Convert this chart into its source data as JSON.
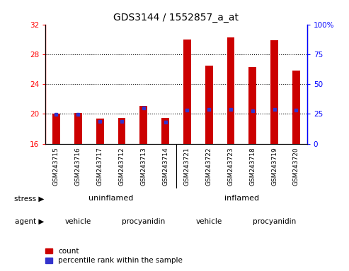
{
  "title": "GDS3144 / 1552857_a_at",
  "samples": [
    "GSM243715",
    "GSM243716",
    "GSM243717",
    "GSM243712",
    "GSM243713",
    "GSM243714",
    "GSM243721",
    "GSM243722",
    "GSM243723",
    "GSM243718",
    "GSM243719",
    "GSM243720"
  ],
  "count_values": [
    20.0,
    20.1,
    19.4,
    19.45,
    21.1,
    19.5,
    30.0,
    26.5,
    30.25,
    26.3,
    29.85,
    25.8
  ],
  "percentile_values": [
    24.5,
    24.5,
    18.5,
    18.5,
    30.0,
    18.0,
    28.0,
    28.8,
    28.8,
    27.5,
    28.8,
    28.0
  ],
  "ymin": 16,
  "ymax": 32,
  "yticks_left": [
    16,
    20,
    24,
    28,
    32
  ],
  "bar_color": "#cc0000",
  "blue_color": "#3333cc",
  "bar_width": 0.35,
  "stress_uninflamed_color": "#aaddaa",
  "stress_inflamed_color": "#44cc44",
  "agent_vehicle_color": "#dd99dd",
  "agent_procyanidin_color": "#cc55cc",
  "stress_label": "stress",
  "agent_label": "agent",
  "legend_count": "count",
  "legend_percentile": "percentile rank within the sample",
  "title_fontsize": 10,
  "tick_fontsize": 7.5,
  "sample_fontsize": 6.5
}
